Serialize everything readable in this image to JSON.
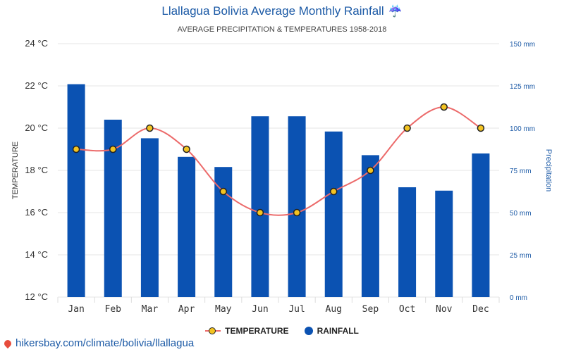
{
  "title": "Llallagua Bolivia Average Monthly Rainfall",
  "title_icon": "umbrella-rain-icon",
  "subtitle": "AVERAGE PRECIPITATION & TEMPERATURES 1958-2018",
  "footer": {
    "text": "hikersbay.com/climate/bolivia/llallagua",
    "icon": "map-pin-icon"
  },
  "legend": {
    "temperature": "TEMPERATURE",
    "rainfall": "RAINFALL",
    "position": "bottom-center"
  },
  "colors": {
    "bar": "#0b52b2",
    "line": "#ec6a6a",
    "marker": "#f3c321",
    "title": "#1c5aa6",
    "axis_right": "#1c5aa6"
  },
  "chart_data": {
    "type": "bar",
    "categories": [
      "Jan",
      "Feb",
      "Mar",
      "Apr",
      "May",
      "Jun",
      "Jul",
      "Aug",
      "Sep",
      "Oct",
      "Nov",
      "Dec"
    ],
    "series": [
      {
        "name": "RAINFALL",
        "type": "bar",
        "axis": "right",
        "values": [
          126,
          105,
          94,
          83,
          77,
          107,
          107,
          98,
          84,
          65,
          63,
          85
        ]
      },
      {
        "name": "TEMPERATURE",
        "type": "line",
        "axis": "left",
        "values": [
          19,
          19,
          20,
          19,
          17,
          16,
          16,
          17,
          18,
          20,
          21,
          20
        ]
      }
    ],
    "y_left": {
      "label": "TEMPERATURE",
      "min": 12,
      "max": 24,
      "ticks": [
        24,
        22,
        20,
        18,
        16,
        14,
        12
      ],
      "tick_labels": [
        "24 °C",
        "22 °C",
        "20 °C",
        "18 °C",
        "16 °C",
        "14 °C",
        "12 °C"
      ]
    },
    "y_right": {
      "label": "Precipitation",
      "min": 0,
      "max": 150,
      "ticks": [
        150,
        125,
        100,
        75,
        50,
        25,
        0
      ],
      "tick_labels": [
        "150 mm",
        "125 mm",
        "100 mm",
        "75 mm",
        "50 mm",
        "25 mm",
        "0 mm"
      ]
    },
    "grid": true
  }
}
